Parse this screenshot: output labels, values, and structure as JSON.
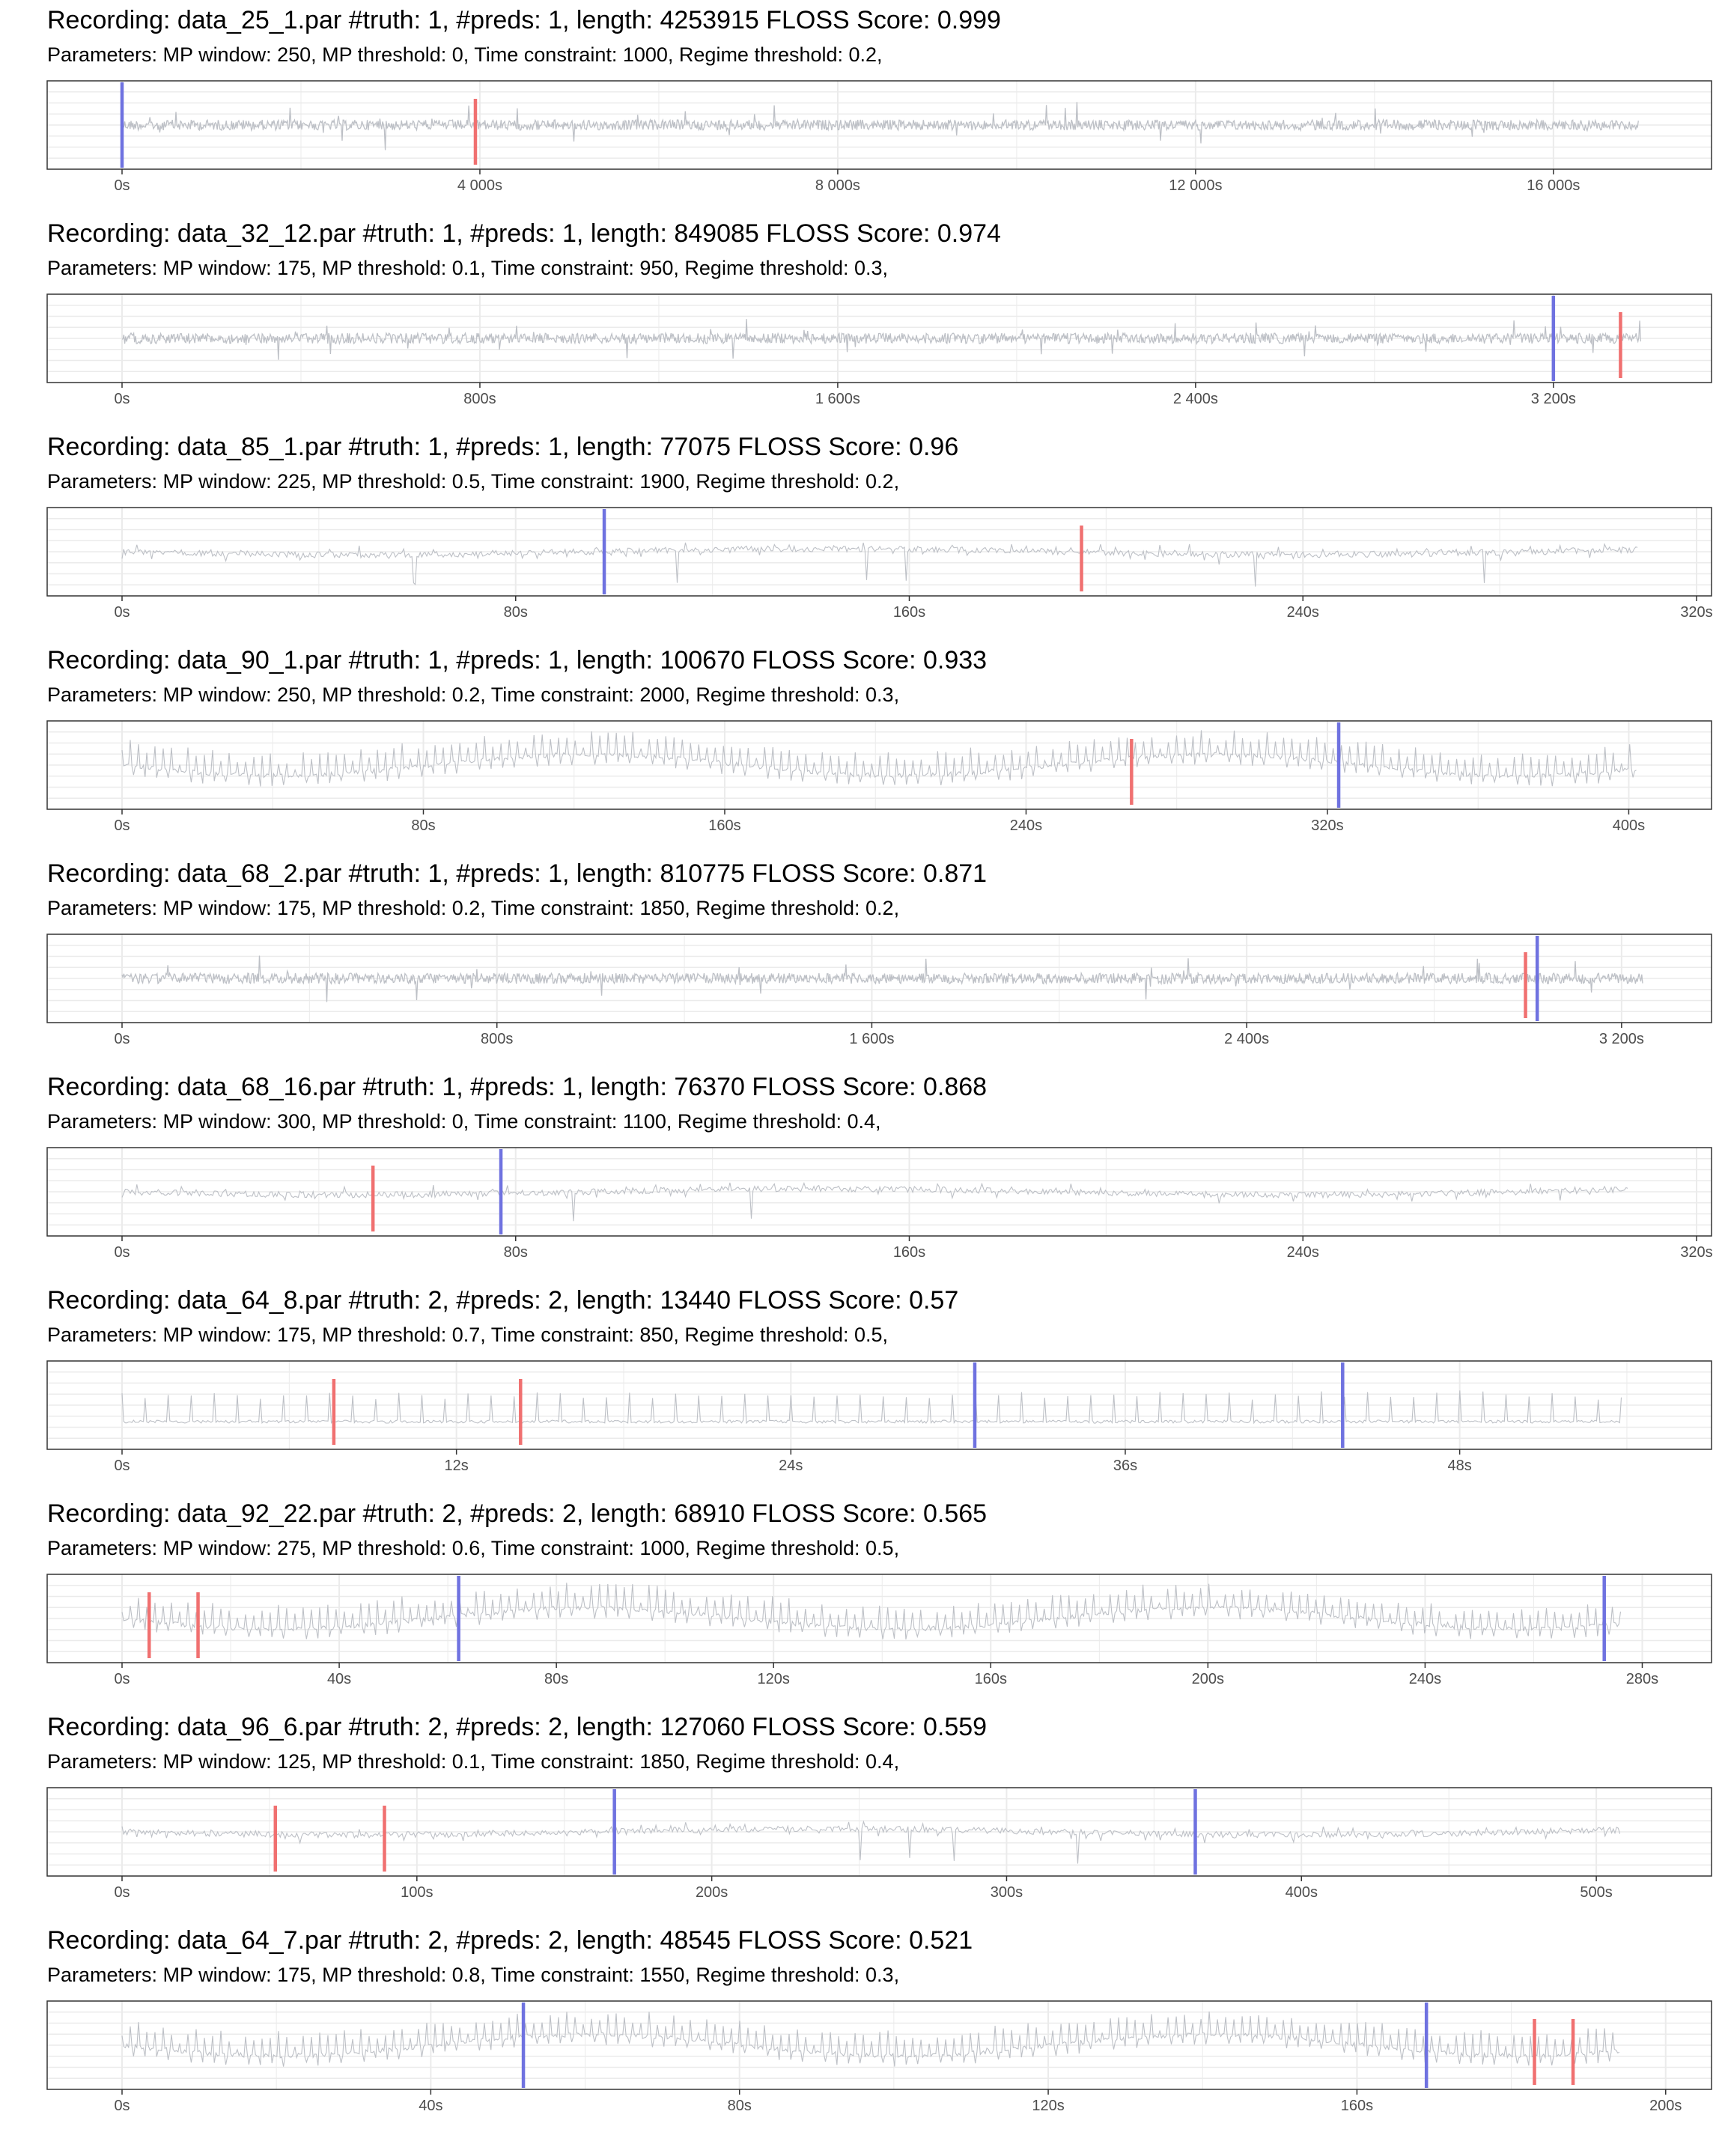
{
  "chart_data": [
    {
      "type": "line",
      "title": "Recording: data_25_1.par #truth: 1, #preds: 1, length: 4253915 FLOSS Score: 0.999",
      "subtitle": "Parameters: MP window: 250, MP threshold: 0, Time constraint: 1000, Regime threshold: 0.2,",
      "xlim": [
        0,
        17600
      ],
      "xticks": [
        0,
        4000,
        8000,
        12000,
        16000
      ],
      "xtick_labels": [
        "0s",
        "4 000s",
        "8 000s",
        "12 000s",
        "16 000s"
      ],
      "signal_end": 16950,
      "truth": [
        0
      ],
      "preds": [
        3950
      ],
      "signal_style": "dense"
    },
    {
      "type": "line",
      "title": "Recording: data_32_12.par #truth: 1, #preds: 1, length: 849085 FLOSS Score: 0.974",
      "subtitle": "Parameters: MP window: 175, MP threshold: 0.1, Time constraint: 950, Regime threshold: 0.3,",
      "xlim": [
        0,
        3520
      ],
      "xticks": [
        0,
        800,
        1600,
        2400,
        3200
      ],
      "xtick_labels": [
        "0s",
        "800s",
        "1 600s",
        "2 400s",
        "3 200s"
      ],
      "signal_end": 3395,
      "truth": [
        3200
      ],
      "preds": [
        3350
      ],
      "signal_style": "dense"
    },
    {
      "type": "line",
      "title": "Recording: data_85_1.par #truth: 1, #preds: 1, length: 77075 FLOSS Score: 0.96",
      "subtitle": "Parameters: MP window: 225, MP threshold: 0.5, Time constraint: 1900, Regime threshold: 0.2,",
      "xlim": [
        0,
        320
      ],
      "xticks": [
        0,
        80,
        160,
        240,
        320
      ],
      "xtick_labels": [
        "0s",
        "80s",
        "160s",
        "240s",
        "320s"
      ],
      "signal_end": 308,
      "truth": [
        98
      ],
      "preds": [
        195
      ],
      "signal_style": "medium"
    },
    {
      "type": "line",
      "title": "Recording: data_90_1.par #truth: 1, #preds: 1, length: 100670 FLOSS Score: 0.933",
      "subtitle": "Parameters: MP window: 250, MP threshold: 0.2, Time constraint: 2000, Regime threshold: 0.3,",
      "xlim": [
        0,
        418
      ],
      "xticks": [
        0,
        80,
        160,
        240,
        320,
        400
      ],
      "xtick_labels": [
        "0s",
        "80s",
        "160s",
        "240s",
        "320s",
        "400s"
      ],
      "signal_end": 402,
      "truth": [
        323
      ],
      "preds": [
        268
      ],
      "signal_style": "spiky"
    },
    {
      "type": "line",
      "title": "Recording: data_68_2.par #truth: 1, #preds: 1, length: 810775 FLOSS Score: 0.871",
      "subtitle": "Parameters: MP window: 175, MP threshold: 0.2, Time constraint: 1850, Regime threshold: 0.2,",
      "xlim": [
        0,
        3360
      ],
      "xticks": [
        0,
        800,
        1600,
        2400,
        3200
      ],
      "xtick_labels": [
        "0s",
        "800s",
        "1 600s",
        "2 400s",
        "3 200s"
      ],
      "signal_end": 3245,
      "truth": [
        3020
      ],
      "preds": [
        2995
      ],
      "signal_style": "dense"
    },
    {
      "type": "line",
      "title": "Recording: data_68_16.par #truth: 1, #preds: 1, length: 76370 FLOSS Score: 0.868",
      "subtitle": "Parameters: MP window: 300, MP threshold: 0, Time constraint: 1100, Regime threshold: 0.4,",
      "xlim": [
        0,
        320
      ],
      "xticks": [
        0,
        80,
        160,
        240,
        320
      ],
      "xtick_labels": [
        "0s",
        "80s",
        "160s",
        "240s",
        "320s"
      ],
      "signal_end": 306,
      "truth": [
        77
      ],
      "preds": [
        51
      ],
      "signal_style": "medium"
    },
    {
      "type": "line",
      "title": "Recording: data_64_8.par #truth: 2, #preds: 2, length: 13440 FLOSS Score: 0.57",
      "subtitle": "Parameters: MP window: 175, MP threshold: 0.7, Time constraint: 850, Regime threshold: 0.5,",
      "xlim": [
        0,
        56.5
      ],
      "xticks": [
        0,
        12,
        24,
        36,
        48
      ],
      "xtick_labels": [
        "0s",
        "12s",
        "24s",
        "36s",
        "48s"
      ],
      "signal_end": 53.8,
      "truth": [
        30.6,
        43.8
      ],
      "preds": [
        7.6,
        14.3
      ],
      "signal_style": "sparse"
    },
    {
      "type": "line",
      "title": "Recording: data_92_22.par #truth: 2, #preds: 2, length: 68910 FLOSS Score: 0.565",
      "subtitle": "Parameters: MP window: 275, MP threshold: 0.6, Time constraint: 1000, Regime threshold: 0.5,",
      "xlim": [
        0,
        290
      ],
      "xticks": [
        0,
        40,
        80,
        120,
        160,
        200,
        240,
        280
      ],
      "xtick_labels": [
        "0s",
        "40s",
        "80s",
        "120s",
        "160s",
        "200s",
        "240s",
        "280s"
      ],
      "signal_end": 276,
      "truth": [
        62,
        273
      ],
      "preds": [
        5,
        14
      ],
      "signal_style": "spiky"
    },
    {
      "type": "line",
      "title": "Recording: data_96_6.par #truth: 2, #preds: 2, length: 127060 FLOSS Score: 0.559",
      "subtitle": "Parameters: MP window: 125, MP threshold: 0.1, Time constraint: 1850, Regime threshold: 0.4,",
      "xlim": [
        0,
        534
      ],
      "xticks": [
        0,
        100,
        200,
        300,
        400,
        500
      ],
      "xtick_labels": [
        "0s",
        "100s",
        "200s",
        "300s",
        "400s",
        "500s"
      ],
      "signal_end": 508,
      "truth": [
        167,
        364
      ],
      "preds": [
        52,
        89
      ],
      "signal_style": "medium"
    },
    {
      "type": "line",
      "title": "Recording: data_64_7.par #truth: 2, #preds: 2, length: 48545 FLOSS Score: 0.521",
      "subtitle": "Parameters: MP window: 175, MP threshold: 0.8, Time constraint: 1550, Regime threshold: 0.3,",
      "xlim": [
        0,
        204
      ],
      "xticks": [
        0,
        40,
        80,
        120,
        160,
        200
      ],
      "xtick_labels": [
        "0s",
        "40s",
        "80s",
        "120s",
        "160s",
        "200s"
      ],
      "signal_end": 194,
      "truth": [
        52,
        169
      ],
      "preds": [
        183,
        188
      ],
      "signal_style": "spiky"
    }
  ],
  "colors": {
    "truth": "#6f72e0",
    "pred": "#f07070",
    "signal": "#bdc0c6",
    "grid": "#ebebeb",
    "panel_border": "#333333",
    "tick_text": "#4d4d4d"
  }
}
